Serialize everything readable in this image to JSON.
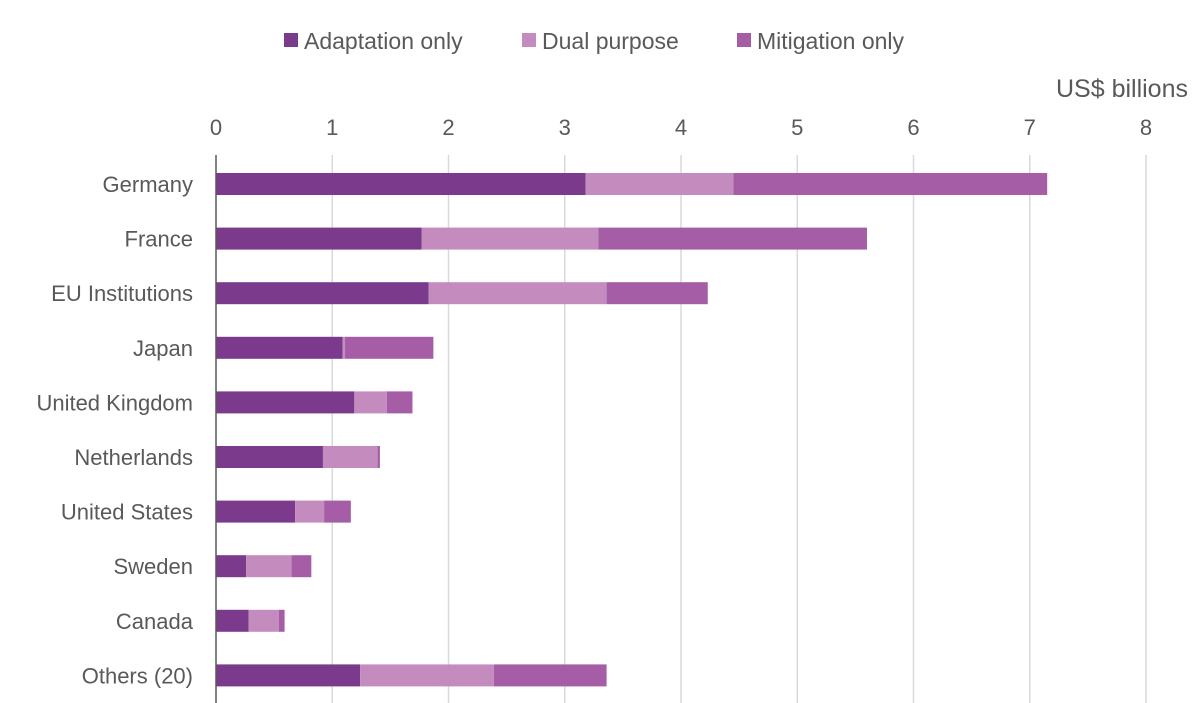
{
  "chart_data": {
    "type": "bar",
    "orientation": "horizontal",
    "stacked": true,
    "unit_label": "US$ billions",
    "xlim": [
      0,
      8
    ],
    "xticks": [
      "0",
      "1",
      "2",
      "3",
      "4",
      "5",
      "6",
      "7",
      "8"
    ],
    "grid": true,
    "legend_position": "top",
    "categories": [
      "Germany",
      "France",
      "EU Institutions",
      "Japan",
      "United Kingdom",
      "Netherlands",
      "United States",
      "Sweden",
      "Canada",
      "Others (20)"
    ],
    "series": [
      {
        "name": "Adaptation only",
        "color": "#7b3a8b",
        "values": [
          3.18,
          1.77,
          1.83,
          1.09,
          1.19,
          0.92,
          0.68,
          0.26,
          0.28,
          1.24
        ]
      },
      {
        "name": "Dual purpose",
        "color": "#c48bbf",
        "values": [
          1.27,
          1.52,
          1.53,
          0.02,
          0.28,
          0.47,
          0.25,
          0.39,
          0.26,
          1.15
        ]
      },
      {
        "name": "Mitigation only",
        "color": "#a55ea5",
        "values": [
          2.7,
          2.31,
          0.87,
          0.76,
          0.22,
          0.02,
          0.23,
          0.17,
          0.05,
          0.97
        ]
      }
    ]
  }
}
